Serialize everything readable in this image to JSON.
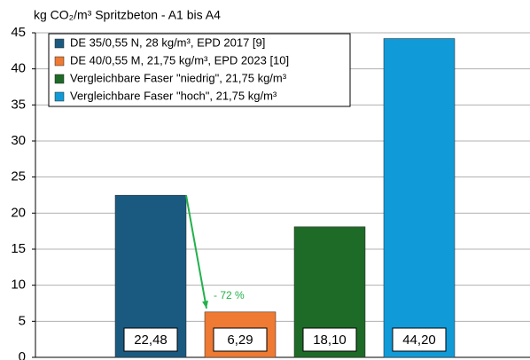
{
  "chart_data": {
    "type": "bar",
    "title": "kg CO₂/m³ Spritzbeton - A1 bis A4",
    "series": [
      {
        "name": "DE 35/0,55 N, 28 kg/m³, EPD 2017 [9]",
        "color": "#1b5a80",
        "values": [
          22.48
        ],
        "value_labels": [
          "22,48"
        ]
      },
      {
        "name": "DE 40/0,55 M, 21,75 kg/m³, EPD 2023 [10]",
        "color": "#ee7a33",
        "values": [
          6.29
        ],
        "value_labels": [
          "6,29"
        ]
      },
      {
        "name": "Vergleichbare Faser \"niedrig\", 21,75 kg/m³",
        "color": "#1e6b27",
        "values": [
          18.1
        ],
        "value_labels": [
          "18,10"
        ]
      },
      {
        "name": "Vergleichbare Faser \"hoch\", 21,75 kg/m³",
        "color": "#119ad8",
        "values": [
          44.2
        ],
        "value_labels": [
          "44,20"
        ]
      }
    ],
    "annotations": [
      {
        "text": "- 72 %",
        "color": "#22b14c"
      }
    ],
    "ylim": [
      0,
      45
    ],
    "yticks": [
      0,
      5,
      10,
      15,
      20,
      25,
      30,
      35,
      40,
      45
    ],
    "grid": true,
    "legend": "upper left"
  }
}
